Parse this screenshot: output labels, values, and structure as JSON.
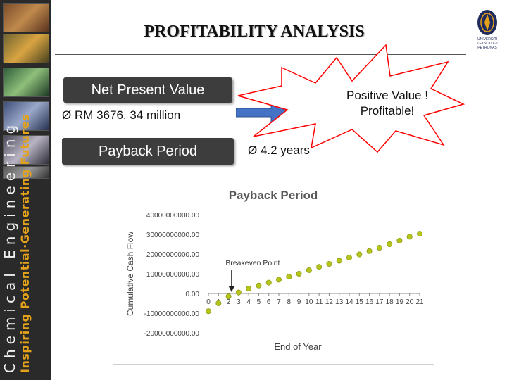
{
  "slide": {
    "title": "PROFITABILITY ANALYSIS"
  },
  "sidebar": {
    "line1": "Chemical Engineering",
    "line2": "Inspiring Potential·Generating Futures",
    "photo_icons": [
      "lab-photo-icon",
      "lab-photo-icon",
      "lab-photo-icon",
      "lab-photo-icon",
      "lab-photo-icon",
      "lab-photo-icon"
    ]
  },
  "logo": {
    "icon": "university-logo-icon",
    "text": [
      "UNIVERSITI",
      "TEKNOLOGI",
      "PETRONAS"
    ]
  },
  "npv": {
    "label": "Net Present Value",
    "bullet": "Ø RM 3676. 34 million"
  },
  "payback": {
    "label": "Payback Period",
    "bullet": "Ø 4.2 years"
  },
  "arrow": {
    "icon": "right-arrow-icon",
    "color": "#4472c4"
  },
  "callout": {
    "line1": "Positive Value !",
    "line2": "Profitable!",
    "color": "#ff0000"
  },
  "chart_data": {
    "type": "scatter",
    "title": "Payback Period",
    "xlabel": "End of Year",
    "ylabel": "Cumulative Cash Flow",
    "x": [
      0,
      1,
      2,
      3,
      4,
      5,
      6,
      7,
      8,
      9,
      10,
      11,
      12,
      13,
      14,
      15,
      16,
      17,
      18,
      19,
      20,
      21
    ],
    "x_tick_labels": [
      "0",
      "1",
      "2",
      "3",
      "4",
      "5",
      "6",
      "7",
      "8",
      "9",
      "10",
      "11",
      "12",
      "13",
      "14",
      "15",
      "16",
      "17",
      "18",
      "19",
      "20",
      "21"
    ],
    "series": [
      {
        "values": [
          -9000000000,
          -5000000000,
          -1500000000,
          500000000,
          2500000000,
          4000000000,
          5500000000,
          7000000000,
          8500000000,
          10000000000,
          11800000000,
          13500000000,
          15000000000,
          16600000000,
          18200000000,
          19800000000,
          21500000000,
          23200000000,
          25000000000,
          26800000000,
          28800000000,
          30300000000
        ],
        "color": "#b5c51a"
      }
    ],
    "ylim": [
      -20000000000,
      40000000000
    ],
    "y_ticks": [
      40000000000,
      30000000000,
      20000000000,
      10000000000,
      0,
      -10000000000,
      -20000000000
    ],
    "y_tick_labels": [
      "40000000000.00",
      "30000000000.00",
      "20000000000.00",
      "10000000000.00",
      "0.00",
      "-10000000000.00",
      "-20000000000.00"
    ],
    "annotation": {
      "text": "Breakeven Point",
      "x": 2.3
    }
  }
}
